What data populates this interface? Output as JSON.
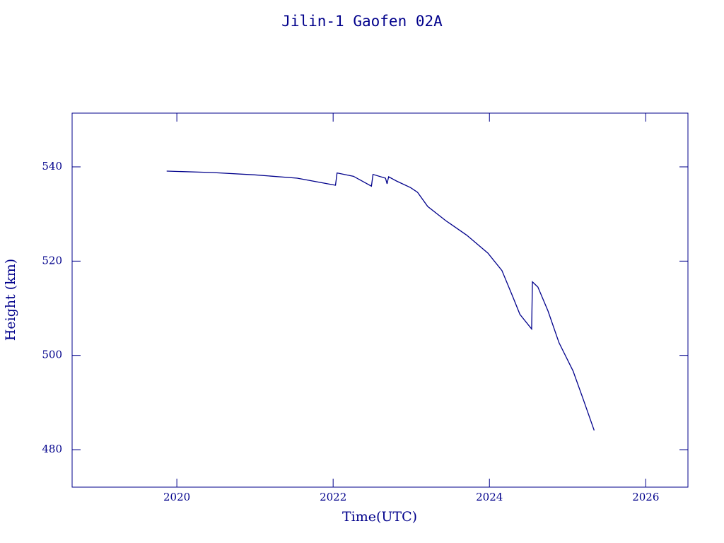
{
  "chart_data": {
    "type": "line",
    "title": "Jilin-1 Gaofen 02A",
    "x_label": "Time(UTC)",
    "y_label": "Height (km)",
    "xlim": [
      2018.66,
      2026.54
    ],
    "ylim": [
      472.05,
      551.4
    ],
    "xticks": [
      2020,
      2022,
      2024,
      2026
    ],
    "yticks": [
      480,
      500,
      520,
      540
    ],
    "grid": false,
    "series": [
      {
        "name": "Height",
        "color": "#00008b",
        "x": [
          2019.87,
          2020.45,
          2020.995,
          2021.54,
          2022.03,
          2022.05,
          2022.26,
          2022.49,
          2022.51,
          2022.67,
          2022.69,
          2022.71,
          2022.81,
          2022.99,
          2023.08,
          2023.21,
          2023.44,
          2023.71,
          2023.98,
          2024.16,
          2024.3,
          2024.39,
          2024.54,
          2024.55,
          2024.62,
          2024.75,
          2024.89,
          2025.07,
          2025.2,
          2025.34
        ],
        "values": [
          539.1,
          538.8,
          538.3,
          537.6,
          536.1,
          538.7,
          538.0,
          535.9,
          538.4,
          537.6,
          536.4,
          537.9,
          537.0,
          535.6,
          534.6,
          531.6,
          528.6,
          525.5,
          521.7,
          518.0,
          512.4,
          508.7,
          505.6,
          515.6,
          514.5,
          509.4,
          502.7,
          496.7,
          490.7,
          484.1
        ]
      }
    ]
  }
}
